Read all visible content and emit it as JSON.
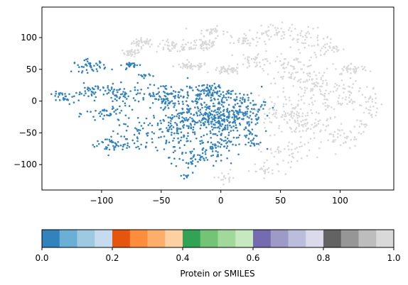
{
  "chart_data": {
    "type": "scatter",
    "title": "",
    "xlabel": "",
    "ylabel": "",
    "xlim": [
      -150,
      145
    ],
    "ylim": [
      -140,
      148
    ],
    "x_ticks": [
      -100,
      -50,
      0,
      50,
      100
    ],
    "y_ticks": [
      -100,
      -50,
      0,
      50,
      100
    ],
    "grid": false,
    "series": [
      {
        "color": "#d9d9d9",
        "clusters": [
          {
            "cx": -65,
            "cy": 92,
            "rx": 8,
            "ry": 6,
            "n": 40
          },
          {
            "cx": -75,
            "cy": 76,
            "rx": 6,
            "ry": 5,
            "n": 30
          },
          {
            "cx": -40,
            "cy": 85,
            "rx": 12,
            "ry": 8,
            "n": 45
          },
          {
            "cx": -15,
            "cy": 90,
            "rx": 12,
            "ry": 10,
            "n": 55
          },
          {
            "cx": -8,
            "cy": 110,
            "rx": 10,
            "ry": 6,
            "n": 30
          },
          {
            "cx": 20,
            "cy": 95,
            "rx": 10,
            "ry": 8,
            "n": 35
          },
          {
            "cx": 45,
            "cy": 110,
            "rx": 12,
            "ry": 10,
            "n": 35
          },
          {
            "cx": 70,
            "cy": 100,
            "rx": 20,
            "ry": 12,
            "n": 45
          },
          {
            "cx": 90,
            "cy": 80,
            "rx": 12,
            "ry": 10,
            "n": 30
          },
          {
            "cx": -25,
            "cy": 55,
            "rx": 12,
            "ry": 5,
            "n": 50
          },
          {
            "cx": 5,
            "cy": 48,
            "rx": 10,
            "ry": 5,
            "n": 45
          },
          {
            "cx": 30,
            "cy": 65,
            "rx": 12,
            "ry": 12,
            "n": 40
          },
          {
            "cx": 60,
            "cy": 50,
            "rx": 18,
            "ry": 18,
            "n": 70
          },
          {
            "cx": 80,
            "cy": 20,
            "rx": 22,
            "ry": 25,
            "n": 90
          },
          {
            "cx": 110,
            "cy": 50,
            "rx": 12,
            "ry": 8,
            "n": 45
          },
          {
            "cx": 108,
            "cy": 10,
            "rx": 15,
            "ry": 20,
            "n": 50
          },
          {
            "cx": 125,
            "cy": -10,
            "rx": 8,
            "ry": 22,
            "n": 25
          },
          {
            "cx": 50,
            "cy": -20,
            "rx": 18,
            "ry": 25,
            "n": 80
          },
          {
            "cx": 75,
            "cy": -35,
            "rx": 25,
            "ry": 25,
            "n": 85
          },
          {
            "cx": 55,
            "cy": -80,
            "rx": 20,
            "ry": 15,
            "n": 45
          },
          {
            "cx": 35,
            "cy": -110,
            "rx": 15,
            "ry": 8,
            "n": 25
          },
          {
            "cx": 5,
            "cy": -120,
            "rx": 10,
            "ry": 6,
            "n": 15
          },
          {
            "cx": 100,
            "cy": -60,
            "rx": 12,
            "ry": 15,
            "n": 30
          },
          {
            "cx": 120,
            "cy": -40,
            "rx": 8,
            "ry": 12,
            "n": 15
          }
        ]
      },
      {
        "color": "#3182bd",
        "clusters": [
          {
            "cx": -130,
            "cy": 5,
            "rx": 10,
            "ry": 8,
            "n": 30
          },
          {
            "cx": -110,
            "cy": 55,
            "rx": 12,
            "ry": 8,
            "n": 45
          },
          {
            "cx": -75,
            "cy": 57,
            "rx": 6,
            "ry": 4,
            "n": 25
          },
          {
            "cx": -65,
            "cy": 40,
            "rx": 5,
            "ry": 3,
            "n": 12
          },
          {
            "cx": -105,
            "cy": 15,
            "rx": 15,
            "ry": 10,
            "n": 50
          },
          {
            "cx": -80,
            "cy": 10,
            "rx": 15,
            "ry": 12,
            "n": 45
          },
          {
            "cx": -95,
            "cy": -20,
            "rx": 15,
            "ry": 12,
            "n": 40
          },
          {
            "cx": -90,
            "cy": -70,
            "rx": 20,
            "ry": 12,
            "n": 50
          },
          {
            "cx": -70,
            "cy": -45,
            "rx": 15,
            "ry": 20,
            "n": 45
          },
          {
            "cx": -45,
            "cy": 10,
            "rx": 15,
            "ry": 15,
            "n": 80
          },
          {
            "cx": -40,
            "cy": -50,
            "rx": 15,
            "ry": 25,
            "n": 80
          },
          {
            "cx": -20,
            "cy": -20,
            "rx": 25,
            "ry": 30,
            "n": 200
          },
          {
            "cx": 5,
            "cy": -30,
            "rx": 20,
            "ry": 35,
            "n": 200
          },
          {
            "cx": 20,
            "cy": -10,
            "rx": 15,
            "ry": 20,
            "n": 80
          },
          {
            "cx": -10,
            "cy": 15,
            "rx": 15,
            "ry": 10,
            "n": 80
          },
          {
            "cx": -25,
            "cy": -90,
            "rx": 15,
            "ry": 15,
            "n": 50
          },
          {
            "cx": -5,
            "cy": -75,
            "rx": 10,
            "ry": 15,
            "n": 40
          },
          {
            "cx": 25,
            "cy": -60,
            "rx": 8,
            "ry": 15,
            "n": 25
          },
          {
            "cx": -30,
            "cy": -118,
            "rx": 4,
            "ry": 3,
            "n": 8
          }
        ]
      }
    ],
    "colorbar": {
      "label": "Protein or SMILES",
      "ticks": [
        "0.0",
        "0.2",
        "0.4",
        "0.6",
        "0.8",
        "1.0"
      ],
      "colors": [
        "#3182bd",
        "#6baed6",
        "#9ecae1",
        "#c6dbef",
        "#e6550d",
        "#fd8d3c",
        "#fdae6b",
        "#fdd0a2",
        "#31a354",
        "#74c476",
        "#a1d99b",
        "#c7e9c0",
        "#756bb1",
        "#9e9ac8",
        "#bcbddc",
        "#dadaeb",
        "#636363",
        "#969696",
        "#bdbdbd",
        "#d9d9d9"
      ]
    }
  }
}
